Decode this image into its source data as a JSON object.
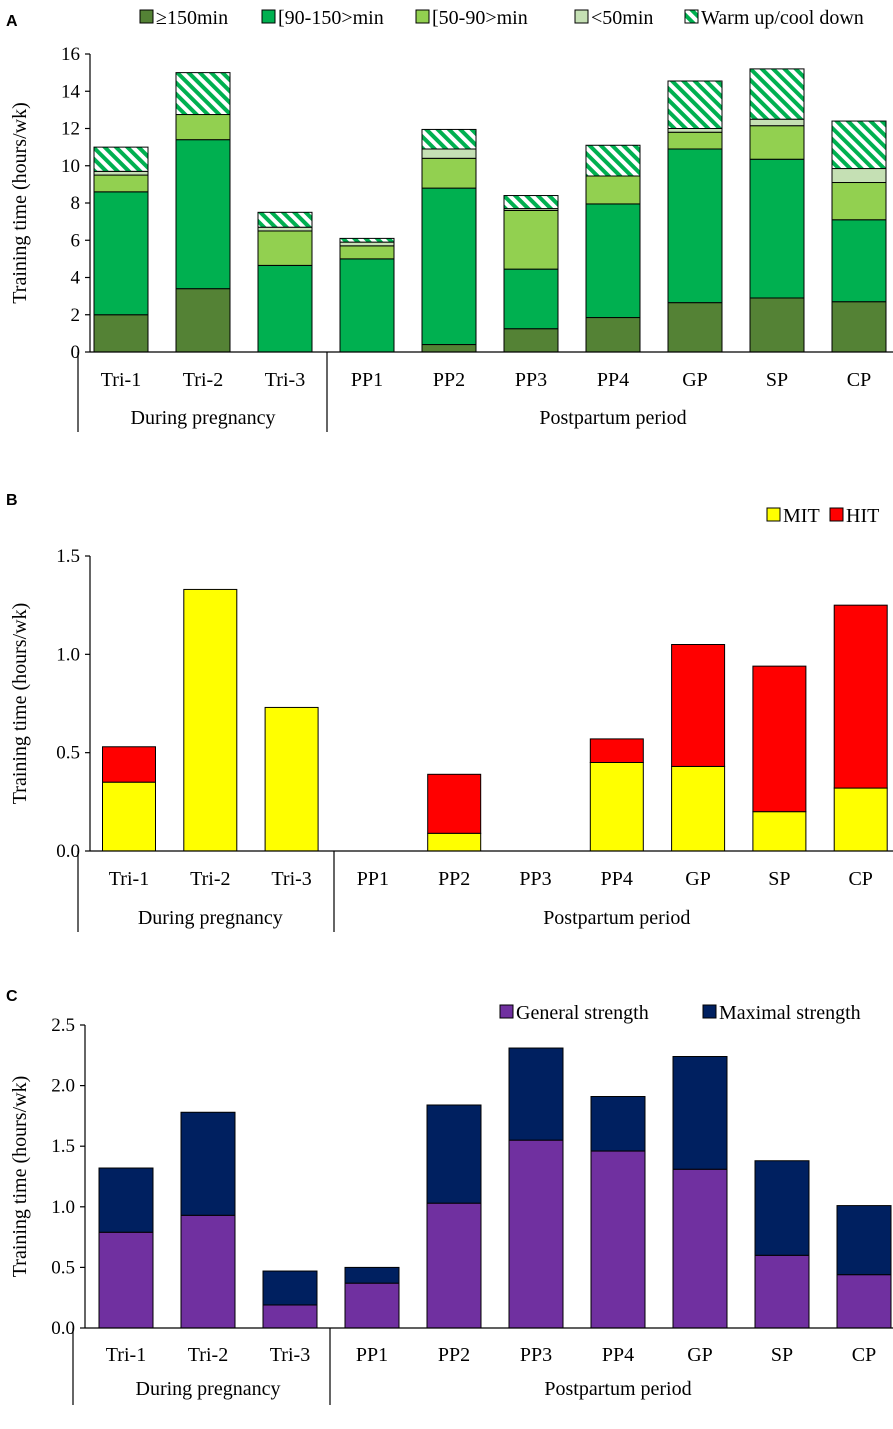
{
  "colors": {
    "ge150": "#548235",
    "r90_150": "#00b050",
    "r50_90": "#92d050",
    "lt50": "#c5e0b4",
    "warmup_stripe": "#00b050",
    "MIT": "#ffff00",
    "HIT": "#ff0000",
    "general": "#7030a0",
    "maximal": "#002060"
  },
  "chart_data": [
    {
      "panel": "A",
      "type": "bar",
      "stacked": true,
      "ylabel": "Training time (hours/wk)",
      "ylim": [
        0,
        16
      ],
      "yticks": [
        "0",
        "2",
        "4",
        "6",
        "8",
        "10",
        "12",
        "14",
        "16"
      ],
      "categories": [
        "Tri-1",
        "Tri-2",
        "Tri-3",
        "PP1",
        "PP2",
        "PP3",
        "PP4",
        "GP",
        "SP",
        "CP"
      ],
      "groups": [
        {
          "label": "During pregnancy",
          "span": 3
        },
        {
          "label": "Postpartum period",
          "span": 7
        }
      ],
      "legend_position": "top",
      "series": [
        {
          "name": "≥150min",
          "color": "#548235",
          "values": [
            2.0,
            3.4,
            0,
            0,
            0.4,
            1.25,
            1.85,
            2.65,
            2.9,
            2.7
          ]
        },
        {
          "name": "[90-150>min",
          "color": "#00b050",
          "values": [
            6.6,
            8.0,
            4.65,
            5.0,
            8.4,
            3.2,
            6.1,
            8.25,
            7.45,
            4.4
          ]
        },
        {
          "name": "[50-90>min",
          "color": "#92d050",
          "values": [
            0.9,
            1.35,
            1.85,
            0.7,
            1.6,
            3.15,
            1.5,
            0.9,
            1.8,
            2.0
          ]
        },
        {
          "name": "<50min",
          "color": "#c5e0b4",
          "values": [
            0.2,
            0,
            0.2,
            0.2,
            0.5,
            0.1,
            0,
            0.2,
            0.35,
            0.75
          ]
        },
        {
          "name": "Warm up/cool down",
          "color": "hatch",
          "values": [
            1.3,
            2.25,
            0.8,
            0.2,
            1.05,
            0.7,
            1.65,
            2.55,
            2.7,
            2.55
          ]
        }
      ]
    },
    {
      "panel": "B",
      "type": "bar",
      "stacked": true,
      "ylabel": "Training time (hours/wk)",
      "ylim": [
        0,
        1.5
      ],
      "yticks": [
        "0.0",
        "0.5",
        "1.0",
        "1.5"
      ],
      "categories": [
        "Tri-1",
        "Tri-2",
        "Tri-3",
        "PP1",
        "PP2",
        "PP3",
        "PP4",
        "GP",
        "SP",
        "CP"
      ],
      "groups": [
        {
          "label": "During pregnancy",
          "span": 3
        },
        {
          "label": "Postpartum period",
          "span": 7
        }
      ],
      "legend_position": "top-right",
      "series": [
        {
          "name": "MIT",
          "color": "#ffff00",
          "values": [
            0.35,
            1.33,
            0.73,
            0,
            0.09,
            0,
            0.45,
            0.43,
            0.2,
            0.32
          ]
        },
        {
          "name": "HIT",
          "color": "#ff0000",
          "values": [
            0.18,
            0,
            0,
            0,
            0.3,
            0,
            0.12,
            0.62,
            0.74,
            0.93
          ]
        }
      ]
    },
    {
      "panel": "C",
      "type": "bar",
      "stacked": true,
      "ylabel": "Training time (hours/wk)",
      "ylim": [
        0,
        2.5
      ],
      "yticks": [
        "0.0",
        "0.5",
        "1.0",
        "1.5",
        "2.0",
        "2.5"
      ],
      "categories": [
        "Tri-1",
        "Tri-2",
        "Tri-3",
        "PP1",
        "PP2",
        "PP3",
        "PP4",
        "GP",
        "SP",
        "CP"
      ],
      "groups": [
        {
          "label": "During pregnancy",
          "span": 3
        },
        {
          "label": "Postpartum period",
          "span": 7
        }
      ],
      "legend_position": "top-right",
      "series": [
        {
          "name": "General strength",
          "color": "#7030a0",
          "values": [
            0.79,
            0.93,
            0.19,
            0.37,
            1.03,
            1.55,
            1.46,
            1.31,
            0.6,
            0.44
          ]
        },
        {
          "name": "Maximal strength",
          "color": "#002060",
          "values": [
            0.53,
            0.85,
            0.28,
            0.13,
            0.81,
            0.76,
            0.45,
            0.93,
            0.78,
            0.57
          ]
        }
      ]
    }
  ]
}
